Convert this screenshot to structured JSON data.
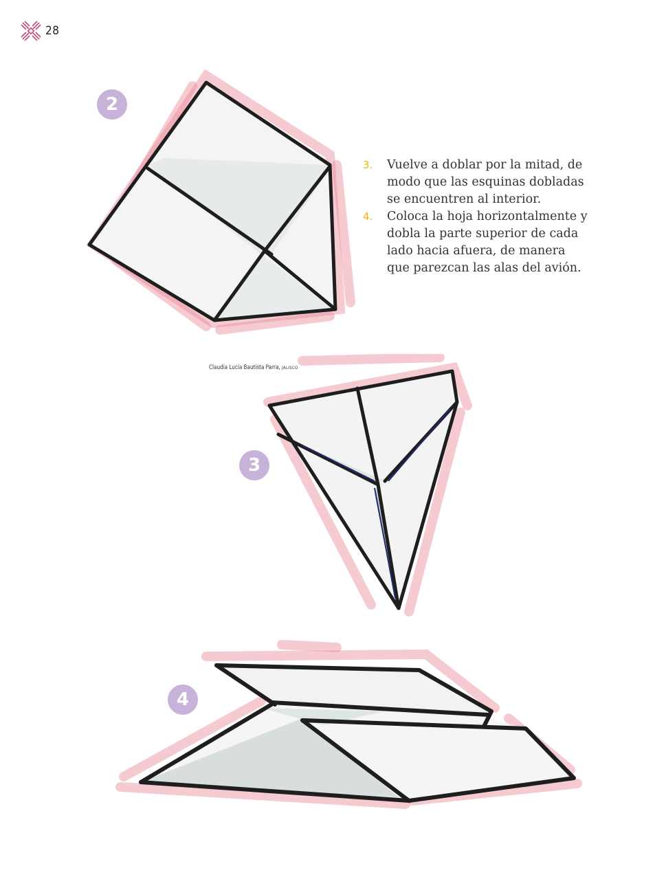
{
  "page": {
    "number": "28"
  },
  "steps": [
    {
      "badge": "2"
    },
    {
      "badge": "3"
    },
    {
      "badge": "4"
    }
  ],
  "instructions": [
    {
      "number": "3.",
      "text": "Vuelve a doblar por la mitad, de modo que las esquinas dobladas se encuentren al interior."
    },
    {
      "number": "4.",
      "text": "Coloca la hoja horizontalmente y dobla la parte superior de cada lado hacia afuera, de manera que parezcan las alas del avión."
    }
  ],
  "credit": {
    "author": "Claudia Lucía Bautista Parra,",
    "state": "JALISCO"
  },
  "colors": {
    "badge": "#c7b2d9",
    "number_accent": "#f2b400",
    "pencil_pink": "#e88c98",
    "ink": "#222222"
  },
  "icons": [
    "decorative-logo-icon"
  ]
}
